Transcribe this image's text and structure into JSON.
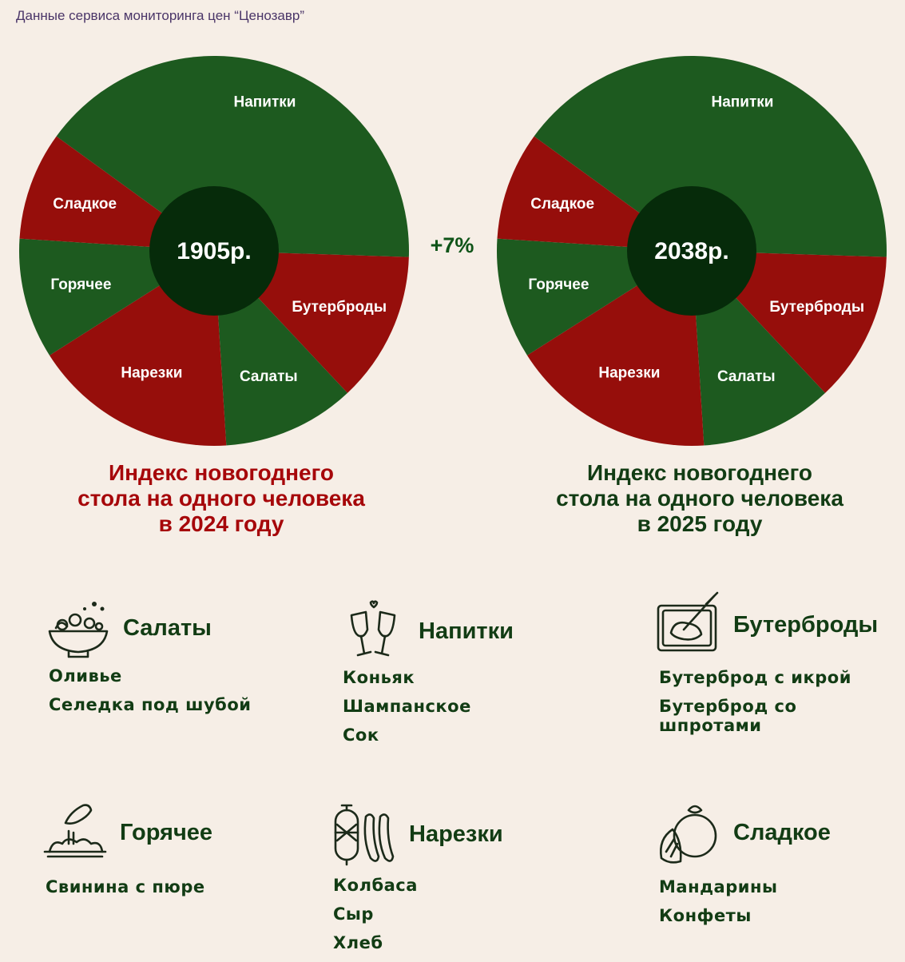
{
  "source": "Данные сервиса мониторинга цен “Ценозавр”",
  "colors": {
    "green": "#1d5a1f",
    "red": "#960e0b",
    "center": "#062b0a"
  },
  "chart_data": [
    {
      "type": "pie",
      "center_label": "1905р.",
      "title": "Индекс новогоднего стола на одного человека в 2024 году",
      "slices": [
        {
          "label": "Напитки",
          "value": 40.5,
          "color": "green"
        },
        {
          "label": "Бутерброды",
          "value": 12.5,
          "color": "red"
        },
        {
          "label": "Салаты",
          "value": 11.0,
          "color": "green"
        },
        {
          "label": "Нарезки",
          "value": 17.0,
          "color": "red"
        },
        {
          "label": "Горячее",
          "value": 10.0,
          "color": "green"
        },
        {
          "label": "Сладкое",
          "value": 9.0,
          "color": "red"
        }
      ]
    },
    {
      "type": "pie",
      "center_label": "2038р.",
      "title": "Индекс новогоднего стола на одного человека в 2025 году",
      "slices": [
        {
          "label": "Напитки",
          "value": 40.5,
          "color": "green"
        },
        {
          "label": "Бутерброды",
          "value": 12.5,
          "color": "red"
        },
        {
          "label": "Салаты",
          "value": 11.0,
          "color": "green"
        },
        {
          "label": "Нарезки",
          "value": 17.0,
          "color": "red"
        },
        {
          "label": "Горячее",
          "value": 10.0,
          "color": "green"
        },
        {
          "label": "Сладкое",
          "value": 9.0,
          "color": "red"
        }
      ]
    }
  ],
  "change": "+7%",
  "captions": {
    "c2024": [
      "Индекс новогоднего",
      "стола на одного человека",
      "в 2024 году"
    ],
    "c2025": [
      "Индекс новогоднего",
      "стола на одного человека",
      "в 2025 году"
    ]
  },
  "categories": {
    "salads": {
      "title": "Салаты",
      "icon": "salad-bowl-icon",
      "items": [
        "Оливье",
        "Селедка под шубой"
      ]
    },
    "drinks": {
      "title": "Напитки",
      "icon": "champagne-glasses-icon",
      "items": [
        "Коньяк",
        "Шампанское",
        "Сок"
      ]
    },
    "sandwiches": {
      "title": "Бутерброды",
      "icon": "sandwich-knife-icon",
      "items": [
        "Бутерброд с икрой",
        "Бутерброд со",
        "шпротами"
      ]
    },
    "hot": {
      "title": "Горячее",
      "icon": "hot-dish-icon",
      "items": [
        "Свинина с пюре"
      ]
    },
    "cuts": {
      "title": "Нарезки",
      "icon": "sausage-icon",
      "items": [
        "Колбаса",
        "Сыр",
        "Хлеб"
      ]
    },
    "sweets": {
      "title": "Сладкое",
      "icon": "tangerine-icon",
      "items": [
        "Мандарины",
        "Конфеты"
      ]
    }
  }
}
